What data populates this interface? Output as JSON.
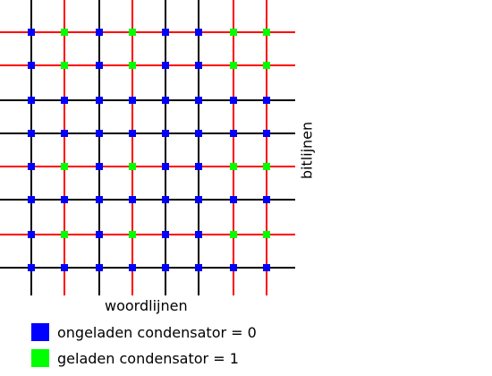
{
  "diagram": {
    "rows": 8,
    "cols": 8,
    "line_colors": {
      "black": "#000000",
      "red": "#ff0000"
    },
    "vertical_line_colors": [
      "black",
      "red",
      "black",
      "red",
      "black",
      "black",
      "red",
      "red"
    ],
    "horizontal_line_colors": [
      "red",
      "red",
      "black",
      "black",
      "red",
      "black",
      "red",
      "black"
    ],
    "cell_states": [
      [
        0,
        1,
        0,
        1,
        0,
        0,
        1,
        1
      ],
      [
        0,
        1,
        0,
        1,
        0,
        0,
        1,
        1
      ],
      [
        0,
        0,
        0,
        0,
        0,
        0,
        0,
        0
      ],
      [
        0,
        0,
        0,
        0,
        0,
        0,
        0,
        0
      ],
      [
        0,
        1,
        0,
        1,
        0,
        0,
        1,
        1
      ],
      [
        0,
        0,
        0,
        0,
        0,
        0,
        0,
        0
      ],
      [
        0,
        1,
        0,
        1,
        0,
        0,
        1,
        1
      ],
      [
        0,
        0,
        0,
        0,
        0,
        0,
        0,
        0
      ]
    ],
    "state_colors": [
      "#0000ff",
      "#00ff00"
    ]
  },
  "labels": {
    "x": "woordlijnen",
    "y": "bitlijnen"
  },
  "legend": [
    {
      "label": "ongeladen condensator = 0",
      "color": "#0000ff"
    },
    {
      "label": "geladen condensator = 1",
      "color": "#00ff00"
    }
  ]
}
